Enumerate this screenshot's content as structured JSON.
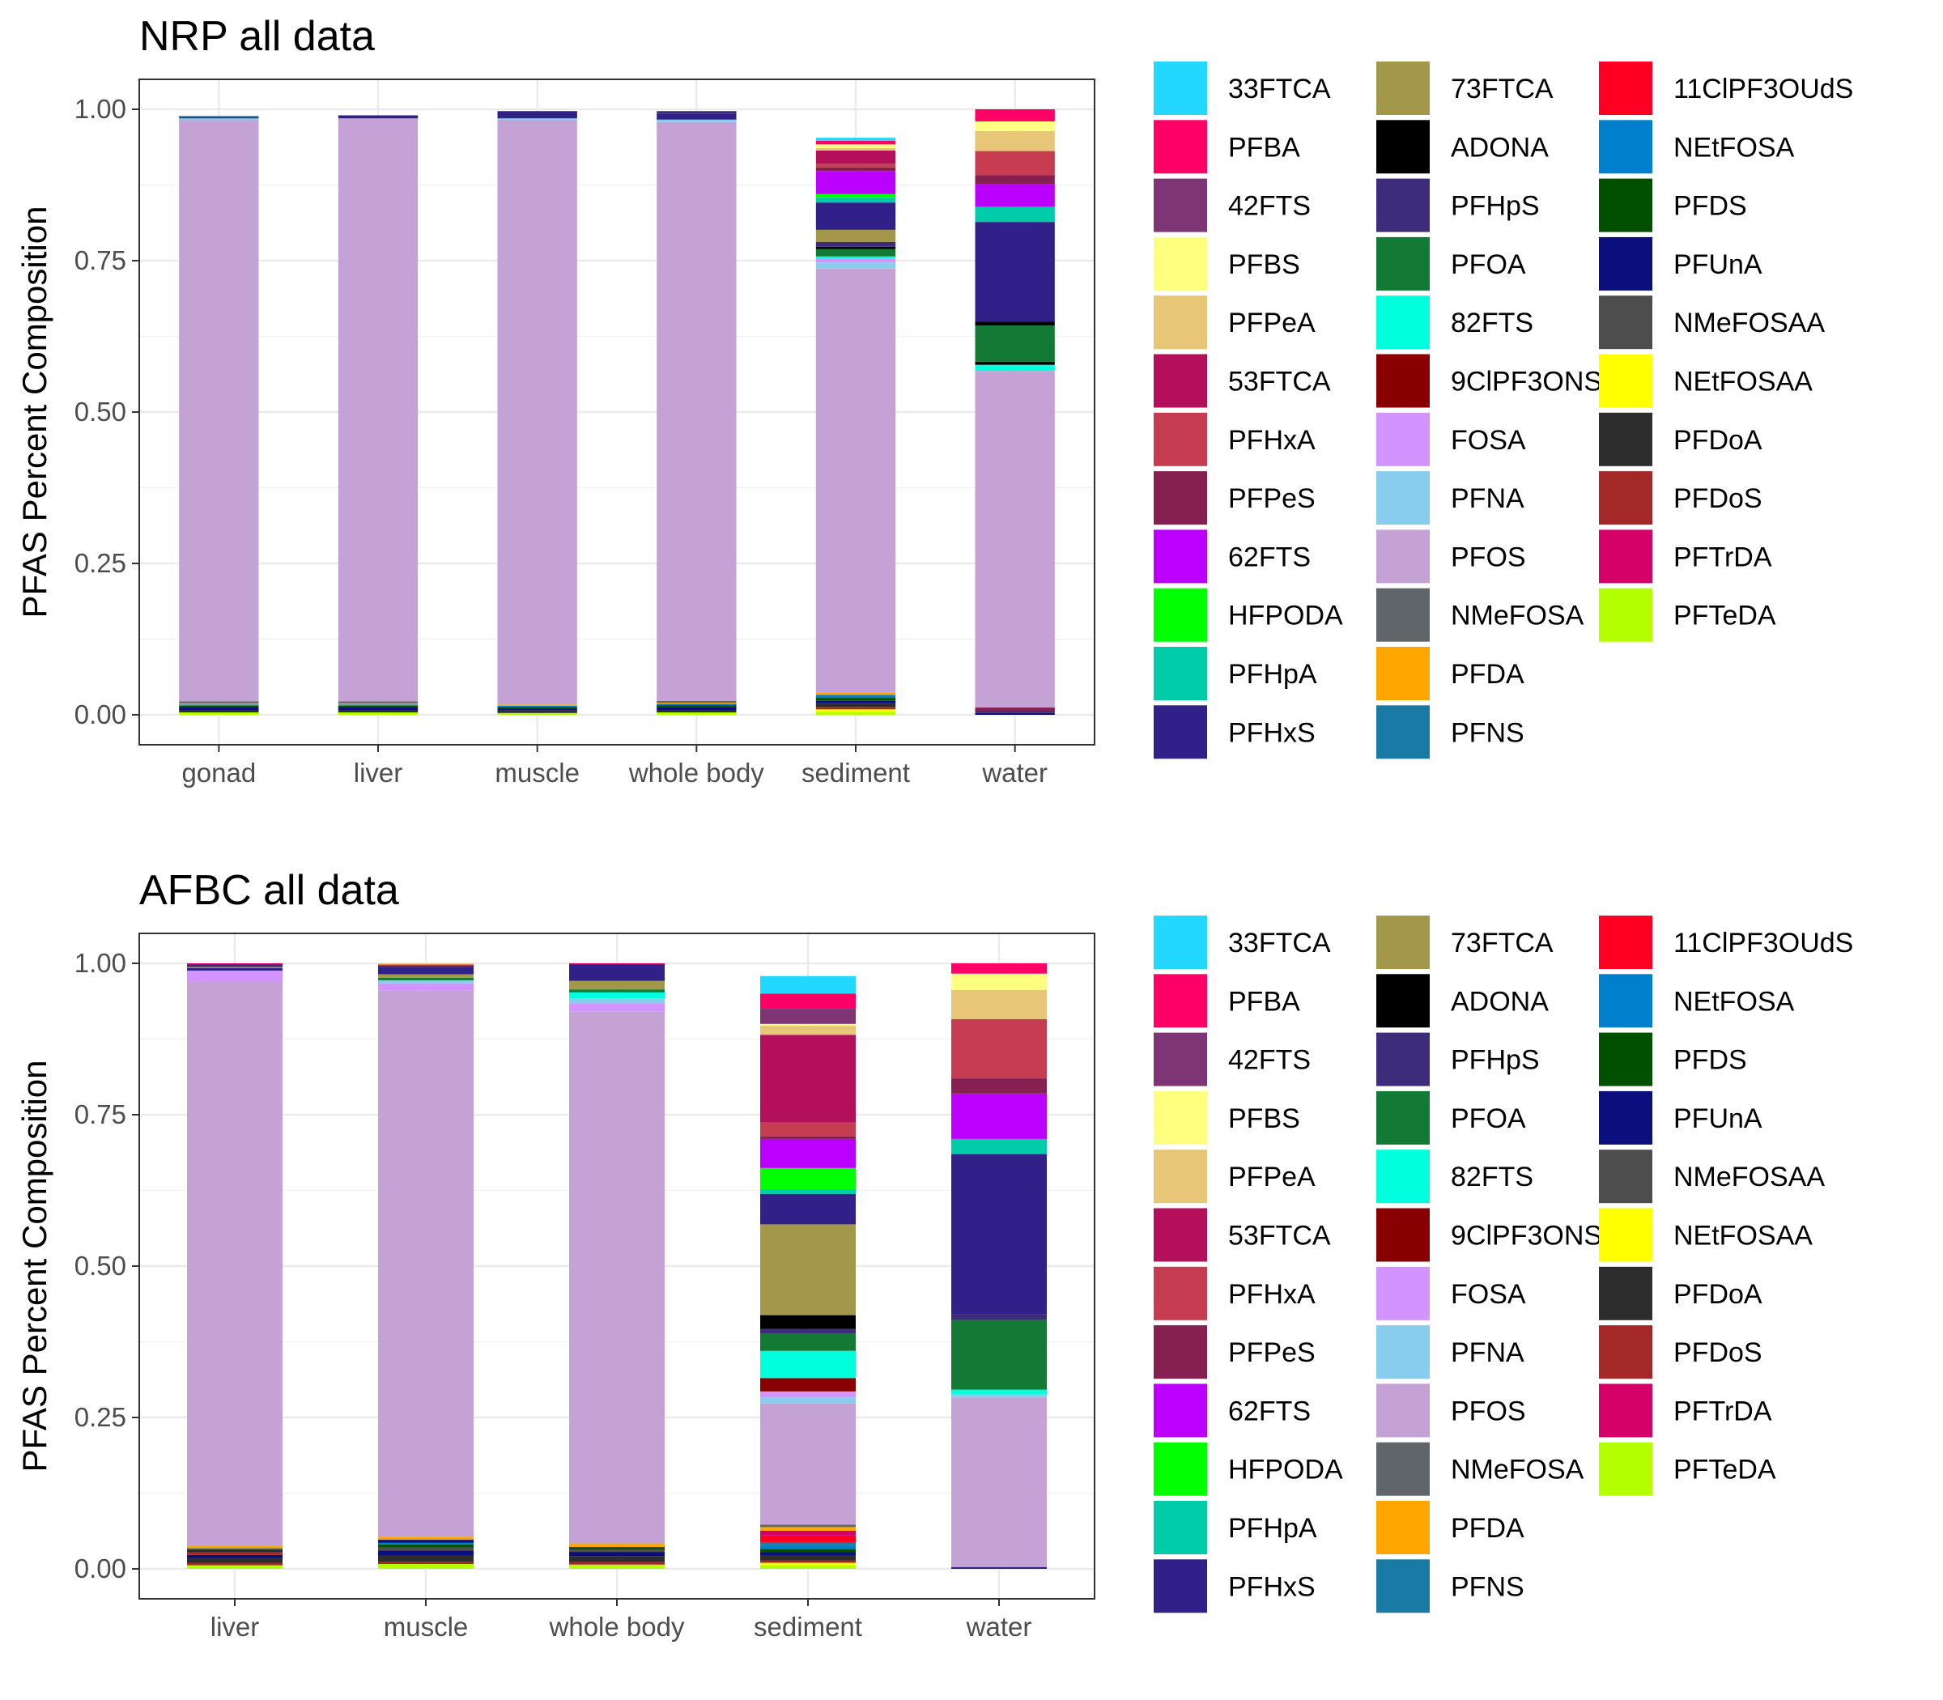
{
  "legend_entries": [
    {
      "name": "33FTCA",
      "color": "#22D8FF"
    },
    {
      "name": "PFBA",
      "color": "#FF0066"
    },
    {
      "name": "42FTS",
      "color": "#7E3575"
    },
    {
      "name": "PFBS",
      "color": "#FFFF80"
    },
    {
      "name": "PFPeA",
      "color": "#E8C678"
    },
    {
      "name": "53FTCA",
      "color": "#B30F5A"
    },
    {
      "name": "PFHxA",
      "color": "#C63C50"
    },
    {
      "name": "PFPeS",
      "color": "#852050"
    },
    {
      "name": "62FTS",
      "color": "#BB00FF"
    },
    {
      "name": "HFPODA",
      "color": "#00FF00"
    },
    {
      "name": "PFHpA",
      "color": "#00CCAA"
    },
    {
      "name": "PFHxS",
      "color": "#302088"
    },
    {
      "name": "73FTCA",
      "color": "#A39849"
    },
    {
      "name": "ADONA",
      "color": "#000000"
    },
    {
      "name": "PFHpS",
      "color": "#3D2C7A"
    },
    {
      "name": "PFOA",
      "color": "#137A35"
    },
    {
      "name": "82FTS",
      "color": "#00FFDD"
    },
    {
      "name": "9ClPF3ONS",
      "color": "#880000"
    },
    {
      "name": "FOSA",
      "color": "#D394FF"
    },
    {
      "name": "PFNA",
      "color": "#88CCEE"
    },
    {
      "name": "PFOS",
      "color": "#C4A2D5"
    },
    {
      "name": "NMeFOSA",
      "color": "#606569"
    },
    {
      "name": "PFDA",
      "color": "#FFA500"
    },
    {
      "name": "PFNS",
      "color": "#197AA5"
    },
    {
      "name": "11ClPF3OUdS",
      "color": "#FF0022"
    },
    {
      "name": "NEtFOSA",
      "color": "#0080CC"
    },
    {
      "name": "PFDS",
      "color": "#005000"
    },
    {
      "name": "PFUnA",
      "color": "#0A0F7D"
    },
    {
      "name": "NMeFOSAA",
      "color": "#4D4D4D"
    },
    {
      "name": "NEtFOSAA",
      "color": "#FFFF00"
    },
    {
      "name": "PFDoA",
      "color": "#2D2D2D"
    },
    {
      "name": "PFDoS",
      "color": "#A52828"
    },
    {
      "name": "PFTrDA",
      "color": "#D60069"
    },
    {
      "name": "PFTeDA",
      "color": "#B3FF00"
    }
  ],
  "chart_data": [
    {
      "type": "bar",
      "stacked": true,
      "title": "NRP all data",
      "xlabel": "",
      "ylabel": "PFAS Percent Composition",
      "ylim": [
        0,
        1
      ],
      "yticks": [
        "0.00",
        "0.25",
        "0.50",
        "0.75",
        "1.00"
      ],
      "grid": true,
      "legend_position": "right",
      "categories": [
        "gonad",
        "liver",
        "muscle",
        "whole body",
        "sediment",
        "water"
      ],
      "stacks": [
        [
          [
            "PFTeDA",
            0.004
          ],
          [
            "PFDoA",
            0.004
          ],
          [
            "PFUnA",
            0.004
          ],
          [
            "PFDS",
            0.003
          ],
          [
            "NEtFOSA",
            0.002
          ],
          [
            "PFDA",
            0.002
          ],
          [
            "NMeFOSA",
            0.003
          ],
          [
            "PFOS",
            0.96
          ],
          [
            "PFNA",
            0.003
          ],
          [
            "PFHxS",
            0.002
          ],
          [
            "PFNS",
            0.002
          ]
        ],
        [
          [
            "PFTeDA",
            0.004
          ],
          [
            "PFDoA",
            0.004
          ],
          [
            "PFUnA",
            0.004
          ],
          [
            "PFDS",
            0.003
          ],
          [
            "NEtFOSA",
            0.002
          ],
          [
            "PFDA",
            0.002
          ],
          [
            "NMeFOSA",
            0.003
          ],
          [
            "PFOS",
            0.963
          ],
          [
            "PFHxS",
            0.005
          ]
        ],
        [
          [
            "PFTeDA",
            0.003
          ],
          [
            "PFDoA",
            0.004
          ],
          [
            "PFUnA",
            0.003
          ],
          [
            "PFDS",
            0.003
          ],
          [
            "NEtFOSA",
            0.002
          ],
          [
            "PFDA",
            0.002
          ],
          [
            "PFOS",
            0.965
          ],
          [
            "PFNA",
            0.003
          ],
          [
            "PFHxS",
            0.012
          ]
        ],
        [
          [
            "PFTeDA",
            0.004
          ],
          [
            "PFDoA",
            0.004
          ],
          [
            "PFUnA",
            0.004
          ],
          [
            "PFDS",
            0.004
          ],
          [
            "NEtFOSA",
            0.002
          ],
          [
            "PFDA",
            0.002
          ],
          [
            "NMeFOSA",
            0.003
          ],
          [
            "PFOS",
            0.956
          ],
          [
            "PFNA",
            0.004
          ],
          [
            "PFHxS",
            0.01
          ],
          [
            "PFHpS",
            0.004
          ]
        ],
        [
          [
            "PFTeDA",
            0.005
          ],
          [
            "NEtFOSAA",
            0.004
          ],
          [
            "PFDoS",
            0.004
          ],
          [
            "PFDoA",
            0.006
          ],
          [
            "PFUnA",
            0.004
          ],
          [
            "PFDS",
            0.005
          ],
          [
            "NEtFOSA",
            0.005
          ],
          [
            "PFDA",
            0.004
          ],
          [
            "PFOS",
            0.7
          ],
          [
            "PFNA",
            0.01
          ],
          [
            "FOSA",
            0.006
          ],
          [
            "82FTS",
            0.004
          ],
          [
            "PFOA",
            0.012
          ],
          [
            "ADONA",
            0.004
          ],
          [
            "PFHpS",
            0.008
          ],
          [
            "73FTCA",
            0.02
          ],
          [
            "PFHxS",
            0.045
          ],
          [
            "PFHpA",
            0.008
          ],
          [
            "HFPODA",
            0.006
          ],
          [
            "62FTS",
            0.038
          ],
          [
            "PFPeS",
            0.006
          ],
          [
            "PFHxA",
            0.006
          ],
          [
            "53FTCA",
            0.022
          ],
          [
            "PFPeA",
            0.004
          ],
          [
            "PFBS",
            0.006
          ],
          [
            "PFBA",
            0.006
          ],
          [
            "33FTCA",
            0.005
          ]
        ],
        [
          [
            "PFUnA",
            0.003
          ],
          [
            "PFHpS",
            0.003
          ],
          [
            "PFPeS",
            0.006
          ],
          [
            "PFOS",
            0.556
          ],
          [
            "82FTS",
            0.01
          ],
          [
            "ADONA",
            0.005
          ],
          [
            "PFOA",
            0.06
          ],
          [
            "ADONA",
            0.006
          ],
          [
            "PFHxS",
            0.165
          ],
          [
            "PFHpA",
            0.025
          ],
          [
            "62FTS",
            0.037
          ],
          [
            "PFPeS",
            0.015
          ],
          [
            "PFHxA",
            0.04
          ],
          [
            "PFPeA",
            0.033
          ],
          [
            "PFBS",
            0.016
          ],
          [
            "PFBA",
            0.02
          ]
        ]
      ]
    },
    {
      "type": "bar",
      "stacked": true,
      "title": "AFBC all data",
      "xlabel": "",
      "ylabel": "PFAS Percent Composition",
      "ylim": [
        0,
        1
      ],
      "yticks": [
        "0.00",
        "0.25",
        "0.50",
        "0.75",
        "1.00"
      ],
      "grid": true,
      "legend_position": "right",
      "categories": [
        "liver",
        "muscle",
        "whole body",
        "sediment",
        "water"
      ],
      "stacks": [
        [
          [
            "PFTeDA",
            0.006
          ],
          [
            "PFDoS",
            0.004
          ],
          [
            "PFDoA",
            0.008
          ],
          [
            "PFUnA",
            0.005
          ],
          [
            "PFDoS",
            0.004
          ],
          [
            "PFDoA",
            0.005
          ],
          [
            "NEtFOSA",
            0.002
          ],
          [
            "PFDA",
            0.004
          ],
          [
            "PFOS",
            0.932
          ],
          [
            "FOSA",
            0.018
          ],
          [
            "PFHxS",
            0.004
          ],
          [
            "73FTCA",
            0.002
          ],
          [
            "PFHpS",
            0.004
          ],
          [
            "PFTrDA",
            0.002
          ]
        ],
        [
          [
            "PFTeDA",
            0.008
          ],
          [
            "PFDoS",
            0.004
          ],
          [
            "PFDoA",
            0.01
          ],
          [
            "PFUnA",
            0.008
          ],
          [
            "NMeFOSAA",
            0.005
          ],
          [
            "PFDS",
            0.005
          ],
          [
            "NEtFOSA",
            0.003
          ],
          [
            "PFUnA",
            0.005
          ],
          [
            "PFDA",
            0.005
          ],
          [
            "PFOS",
            0.902
          ],
          [
            "FOSA",
            0.012
          ],
          [
            "PFNA",
            0.005
          ],
          [
            "PFOA",
            0.004
          ],
          [
            "73FTCA",
            0.006
          ],
          [
            "PFHxS",
            0.01
          ],
          [
            "PFHpS",
            0.004
          ],
          [
            "PFHxA",
            0.002
          ],
          [
            "PFPeA",
            0.002
          ]
        ],
        [
          [
            "PFTeDA",
            0.007
          ],
          [
            "PFDoS",
            0.004
          ],
          [
            "PFDoA",
            0.01
          ],
          [
            "PFUnA",
            0.007
          ],
          [
            "NMeFOSAA",
            0.004
          ],
          [
            "PFDS",
            0.004
          ],
          [
            "PFDA",
            0.006
          ],
          [
            "PFOS",
            0.878
          ],
          [
            "FOSA",
            0.014
          ],
          [
            "PFNA",
            0.008
          ],
          [
            "82FTS",
            0.01
          ],
          [
            "PFOA",
            0.005
          ],
          [
            "73FTCA",
            0.014
          ],
          [
            "PFHxS",
            0.027
          ],
          [
            "PFTrDA",
            0.002
          ]
        ],
        [
          [
            "PFTeDA",
            0.006
          ],
          [
            "NEtFOSAA",
            0.004
          ],
          [
            "PFDoS",
            0.004
          ],
          [
            "PFDoA",
            0.008
          ],
          [
            "PFUnA",
            0.006
          ],
          [
            "PFDS",
            0.005
          ],
          [
            "NEtFOSA",
            0.006
          ],
          [
            "PFNS",
            0.004
          ],
          [
            "11ClPF3OUdS",
            0.012
          ],
          [
            "PFTrDA",
            0.008
          ],
          [
            "PFDA",
            0.006
          ],
          [
            "NMeFOSA",
            0.004
          ],
          [
            "PFOS",
            0.2
          ],
          [
            "PFNA",
            0.01
          ],
          [
            "FOSA",
            0.01
          ],
          [
            "9ClPF3ONS",
            0.022
          ],
          [
            "82FTS",
            0.045
          ],
          [
            "PFOA",
            0.028
          ],
          [
            "PFHpS",
            0.008
          ],
          [
            "ADONA",
            0.023
          ],
          [
            "73FTCA",
            0.15
          ],
          [
            "PFHxS",
            0.05
          ],
          [
            "PFHpA",
            0.008
          ],
          [
            "HFPODA",
            0.035
          ],
          [
            "62FTS",
            0.048
          ],
          [
            "PFPeS",
            0.004
          ],
          [
            "PFHxA",
            0.023
          ],
          [
            "53FTCA",
            0.145
          ],
          [
            "PFPeA",
            0.015
          ],
          [
            "PFBS",
            0.003
          ],
          [
            "42FTS",
            0.025
          ],
          [
            "PFBA",
            0.025
          ],
          [
            "33FTCA",
            0.029
          ]
        ],
        [
          [
            "PFHxS",
            0.003
          ],
          [
            "PFOS",
            0.28
          ],
          [
            "PFNA",
            0.005
          ],
          [
            "82FTS",
            0.008
          ],
          [
            "PFOA",
            0.115
          ],
          [
            "PFHpS",
            0.009
          ],
          [
            "PFHxS",
            0.265
          ],
          [
            "PFHpA",
            0.025
          ],
          [
            "62FTS",
            0.075
          ],
          [
            "PFPeS",
            0.025
          ],
          [
            "PFHxA",
            0.098
          ],
          [
            "PFPeA",
            0.048
          ],
          [
            "PFBS",
            0.027
          ],
          [
            "PFBA",
            0.017
          ]
        ]
      ]
    }
  ]
}
